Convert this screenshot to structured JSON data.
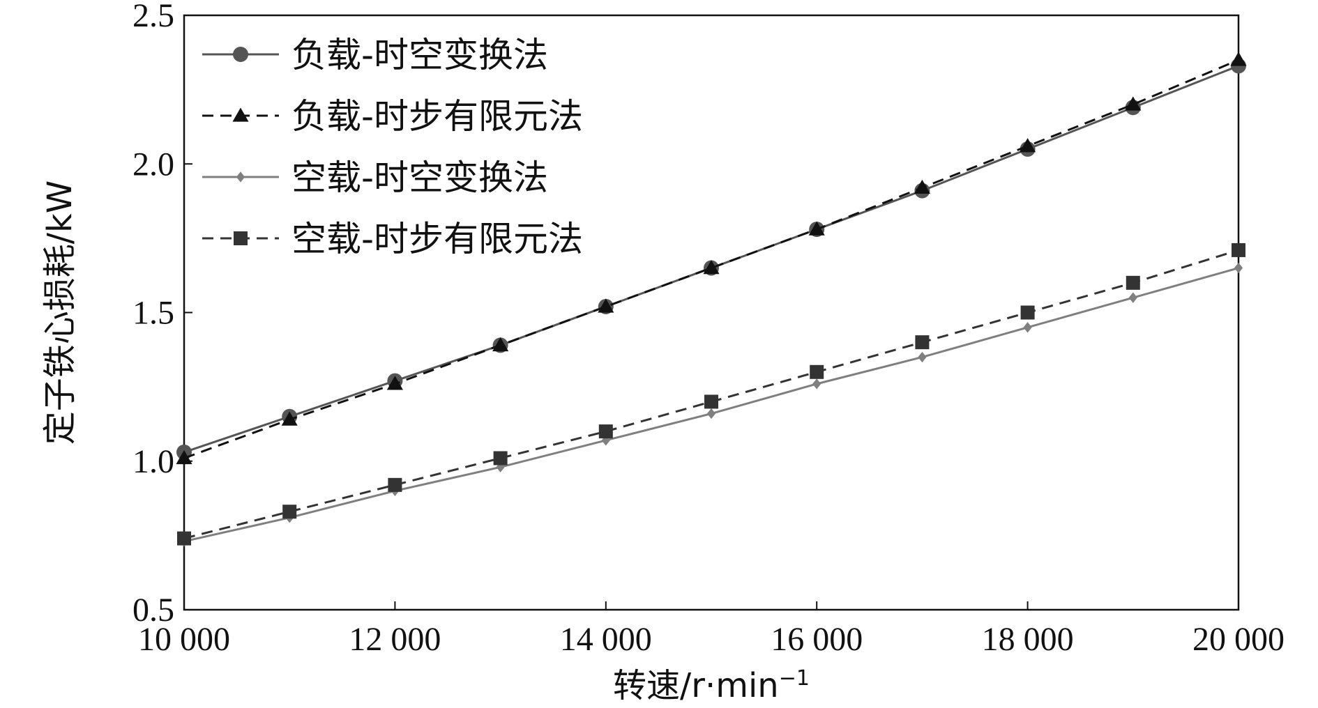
{
  "chart_data": {
    "type": "line",
    "title": "",
    "xlabel": "转速/r·min",
    "xlabel_superscript": "−1",
    "ylabel": "定子铁心损耗/kW",
    "xlim": [
      10000,
      20000
    ],
    "ylim": [
      0.5,
      2.5
    ],
    "xticks": [
      10000,
      12000,
      14000,
      16000,
      18000,
      20000
    ],
    "xtick_labels": [
      "10 000",
      "12 000",
      "14 000",
      "16 000",
      "18 000",
      "20 000"
    ],
    "yticks": [
      0.5,
      1.0,
      1.5,
      2.0,
      2.5
    ],
    "ytick_labels": [
      "0.5",
      "1.0",
      "1.5",
      "2.0",
      "2.5"
    ],
    "grid": false,
    "legend_position": "top-left",
    "x": [
      10000,
      11000,
      12000,
      13000,
      14000,
      15000,
      16000,
      17000,
      18000,
      19000,
      20000
    ],
    "series": [
      {
        "name": "负载-时空变换法",
        "marker": "circle",
        "dash": "solid",
        "color": "#555555",
        "values": [
          1.03,
          1.15,
          1.27,
          1.39,
          1.52,
          1.65,
          1.78,
          1.91,
          2.05,
          2.19,
          2.33
        ]
      },
      {
        "name": "负载-时步有限元法",
        "marker": "triangle",
        "dash": "dashed",
        "color": "#111111",
        "values": [
          1.01,
          1.14,
          1.26,
          1.39,
          1.52,
          1.65,
          1.78,
          1.92,
          2.06,
          2.2,
          2.35
        ]
      },
      {
        "name": "空载-时空变换法",
        "marker": "diamond",
        "dash": "solid",
        "color": "#7f7f7f",
        "values": [
          0.73,
          0.81,
          0.9,
          0.98,
          1.07,
          1.16,
          1.26,
          1.35,
          1.45,
          1.55,
          1.65
        ]
      },
      {
        "name": "空载-时步有限元法",
        "marker": "square",
        "dash": "dashed",
        "color": "#333333",
        "values": [
          0.74,
          0.83,
          0.92,
          1.01,
          1.1,
          1.2,
          1.3,
          1.4,
          1.5,
          1.6,
          1.71
        ]
      }
    ]
  }
}
